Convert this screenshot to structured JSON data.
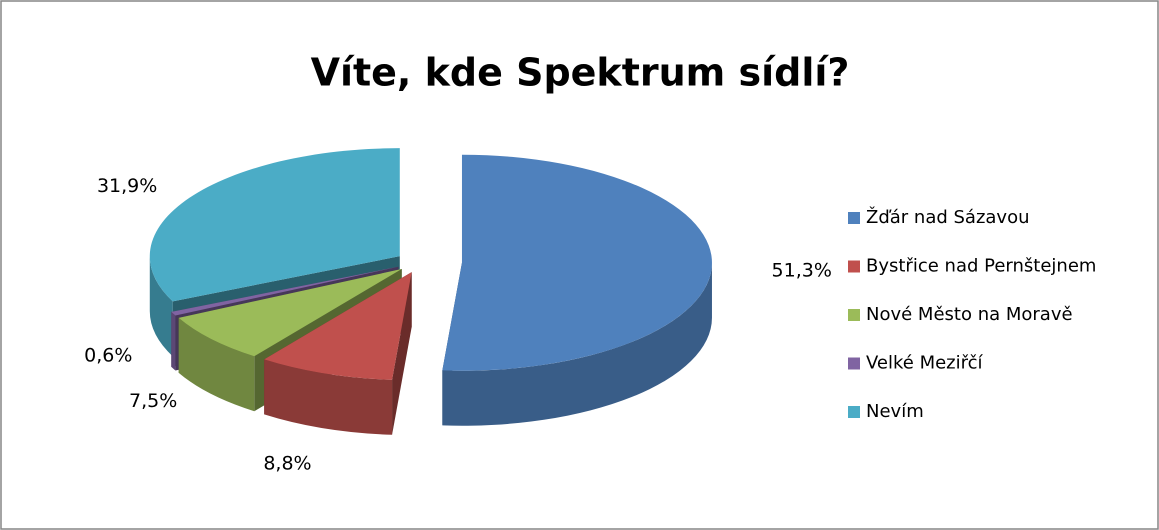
{
  "chart_data": {
    "type": "pie",
    "title": "Víte, kde Spektrum sídlí?",
    "categories": [
      "Žďár nad Sázavou",
      "Bystřice nad Pernštejnem",
      "Nové Město na Moravě",
      "Velké Meziřčí",
      "Nevím"
    ],
    "values": [
      51.3,
      8.8,
      7.5,
      0.6,
      31.9
    ],
    "value_labels": [
      "51,3%",
      "8,8%",
      "7,5%",
      "0,6%",
      "31,9%"
    ],
    "colors": [
      "#4f81bd",
      "#c0504d",
      "#9bbb59",
      "#8064a2",
      "#4bacc6"
    ],
    "legend": "right"
  }
}
